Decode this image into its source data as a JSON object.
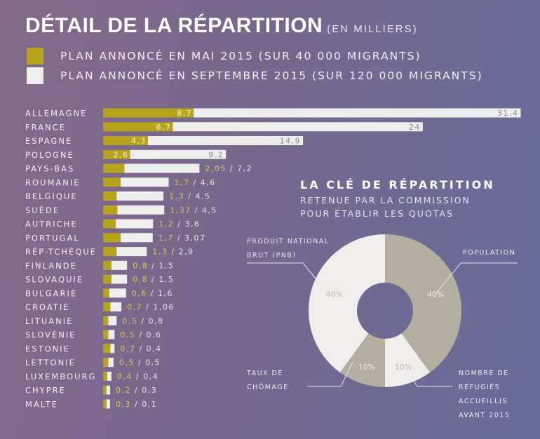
{
  "title": "DÉTAIL DE LA RÉPARTITION",
  "title_unit": "(EN MILLIERS)",
  "colors": {
    "may": "#b5a41c",
    "september": "#efeeee",
    "label_may": "#d8c65a",
    "donut_taupe": "#b3ae9f",
    "donut_white": "#efeeed"
  },
  "chart_data": [
    {
      "type": "bar",
      "orientation": "horizontal",
      "stacked": true,
      "legend": [
        "PLAN ANNONCÉ EN MAI 2015 (SUR 40 000 MIGRANTS)",
        "PLAN ANNONCÉ EN SEPTEMBRE 2015 (SUR 120 000 MIGRANTS)"
      ],
      "categories": [
        "ALLEMAGNE",
        "FRANCE",
        "ESPAGNE",
        "POLOGNE",
        "PAYS-BAS",
        "ROUMANIE",
        "BELGIQUE",
        "SUÈDE",
        "AUTRICHE",
        "PORTUGAL",
        "RÉP-TCHÈQUE",
        "FINLANDE",
        "SLOVAQUIE",
        "BULGARIE",
        "CROATIE",
        "LITUANIE",
        "SLOVÉNIE",
        "ESTONIE",
        "LETTONIE",
        "LUXEMBOURG",
        "CHYPRE",
        "MALTE"
      ],
      "series": [
        {
          "name": "PLAN ANNONCÉ EN MAI 2015 (SUR 40 000 MIGRANTS)",
          "values": [
            8.7,
            6.7,
            4.3,
            2.6,
            2.05,
            1.7,
            1.3,
            1.37,
            1.2,
            1.7,
            1.3,
            0.8,
            0.8,
            0.6,
            0.7,
            0.5,
            0.5,
            0.7,
            0.5,
            0.4,
            0.2,
            0.3
          ],
          "labels": [
            "8,7",
            "6,7",
            "4,3",
            "2,6",
            "2,05",
            "1,7",
            "1,3",
            "1,37",
            "1,2",
            "1,7",
            "1,3",
            "0,8",
            "0,8",
            "0,6",
            "0,7",
            "0,5",
            "0,5",
            "0,7",
            "0,5",
            "0,4",
            "0,2",
            "0,3"
          ]
        },
        {
          "name": "PLAN ANNONCÉ EN SEPTEMBRE 2015 (SUR 120 000 MIGRANTS)",
          "values": [
            31.4,
            24,
            14.9,
            9.2,
            7.2,
            4.6,
            4.5,
            4.5,
            3.6,
            3.07,
            2.9,
            1.5,
            1.5,
            1.6,
            1.06,
            0.8,
            0.6,
            0.4,
            0.5,
            0.4,
            0.3,
            0.1
          ],
          "labels": [
            "31,4",
            "24",
            "14,9",
            "9,2",
            "7,2",
            "4,6",
            "4,5",
            "4,5",
            "3,6",
            "3,07",
            "2,9",
            "1,5",
            "1,5",
            "1,6",
            "1,06",
            "0,8",
            "0,6",
            "0,4",
            "0,5",
            "0,4",
            "0,3",
            "0,1"
          ]
        }
      ]
    },
    {
      "type": "pie",
      "donut": true,
      "title": "LA CLÉ DE RÉPARTITION",
      "subtitle": [
        "RETENUE PAR LA COMMISSION",
        "POUR ÉTABLIR LES QUOTAS"
      ],
      "slices": [
        {
          "label": "POPULATION",
          "value": 40,
          "text": "40%"
        },
        {
          "label": "NOMBRE DE RÉFUGIÉS ACCUEILLIS AVANT 2015",
          "value": 10,
          "text": "10%"
        },
        {
          "label": "TAUX DE CHÔMAGE",
          "value": 10,
          "text": "10%"
        },
        {
          "label": "PRODUIT NATIONAL BRUT (PNB)",
          "value": 40,
          "text": "40%"
        }
      ]
    }
  ]
}
